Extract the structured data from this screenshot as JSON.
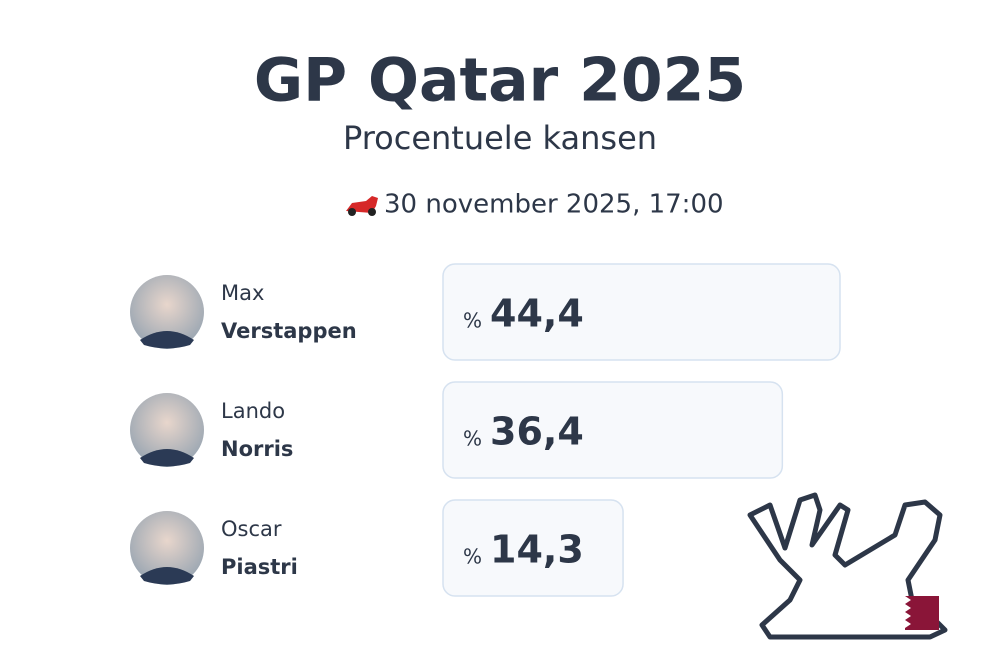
{
  "chart_data": {
    "type": "bar",
    "orientation": "horizontal",
    "title": "GP Qatar 2025",
    "subtitle": "Procentuele kansen",
    "date": "30 november 2025, 17:00",
    "first_names": [
      "Max",
      "Lando",
      "Oscar"
    ],
    "categories": [
      "Verstappen",
      "Norris",
      "Piastri"
    ],
    "values": [
      44.4,
      36.4,
      14.3
    ],
    "value_labels": [
      "44,4",
      "36,4",
      "14,3"
    ],
    "unit": "%",
    "color": "#f7f9fc",
    "border_color": "#d6e2f0"
  }
}
